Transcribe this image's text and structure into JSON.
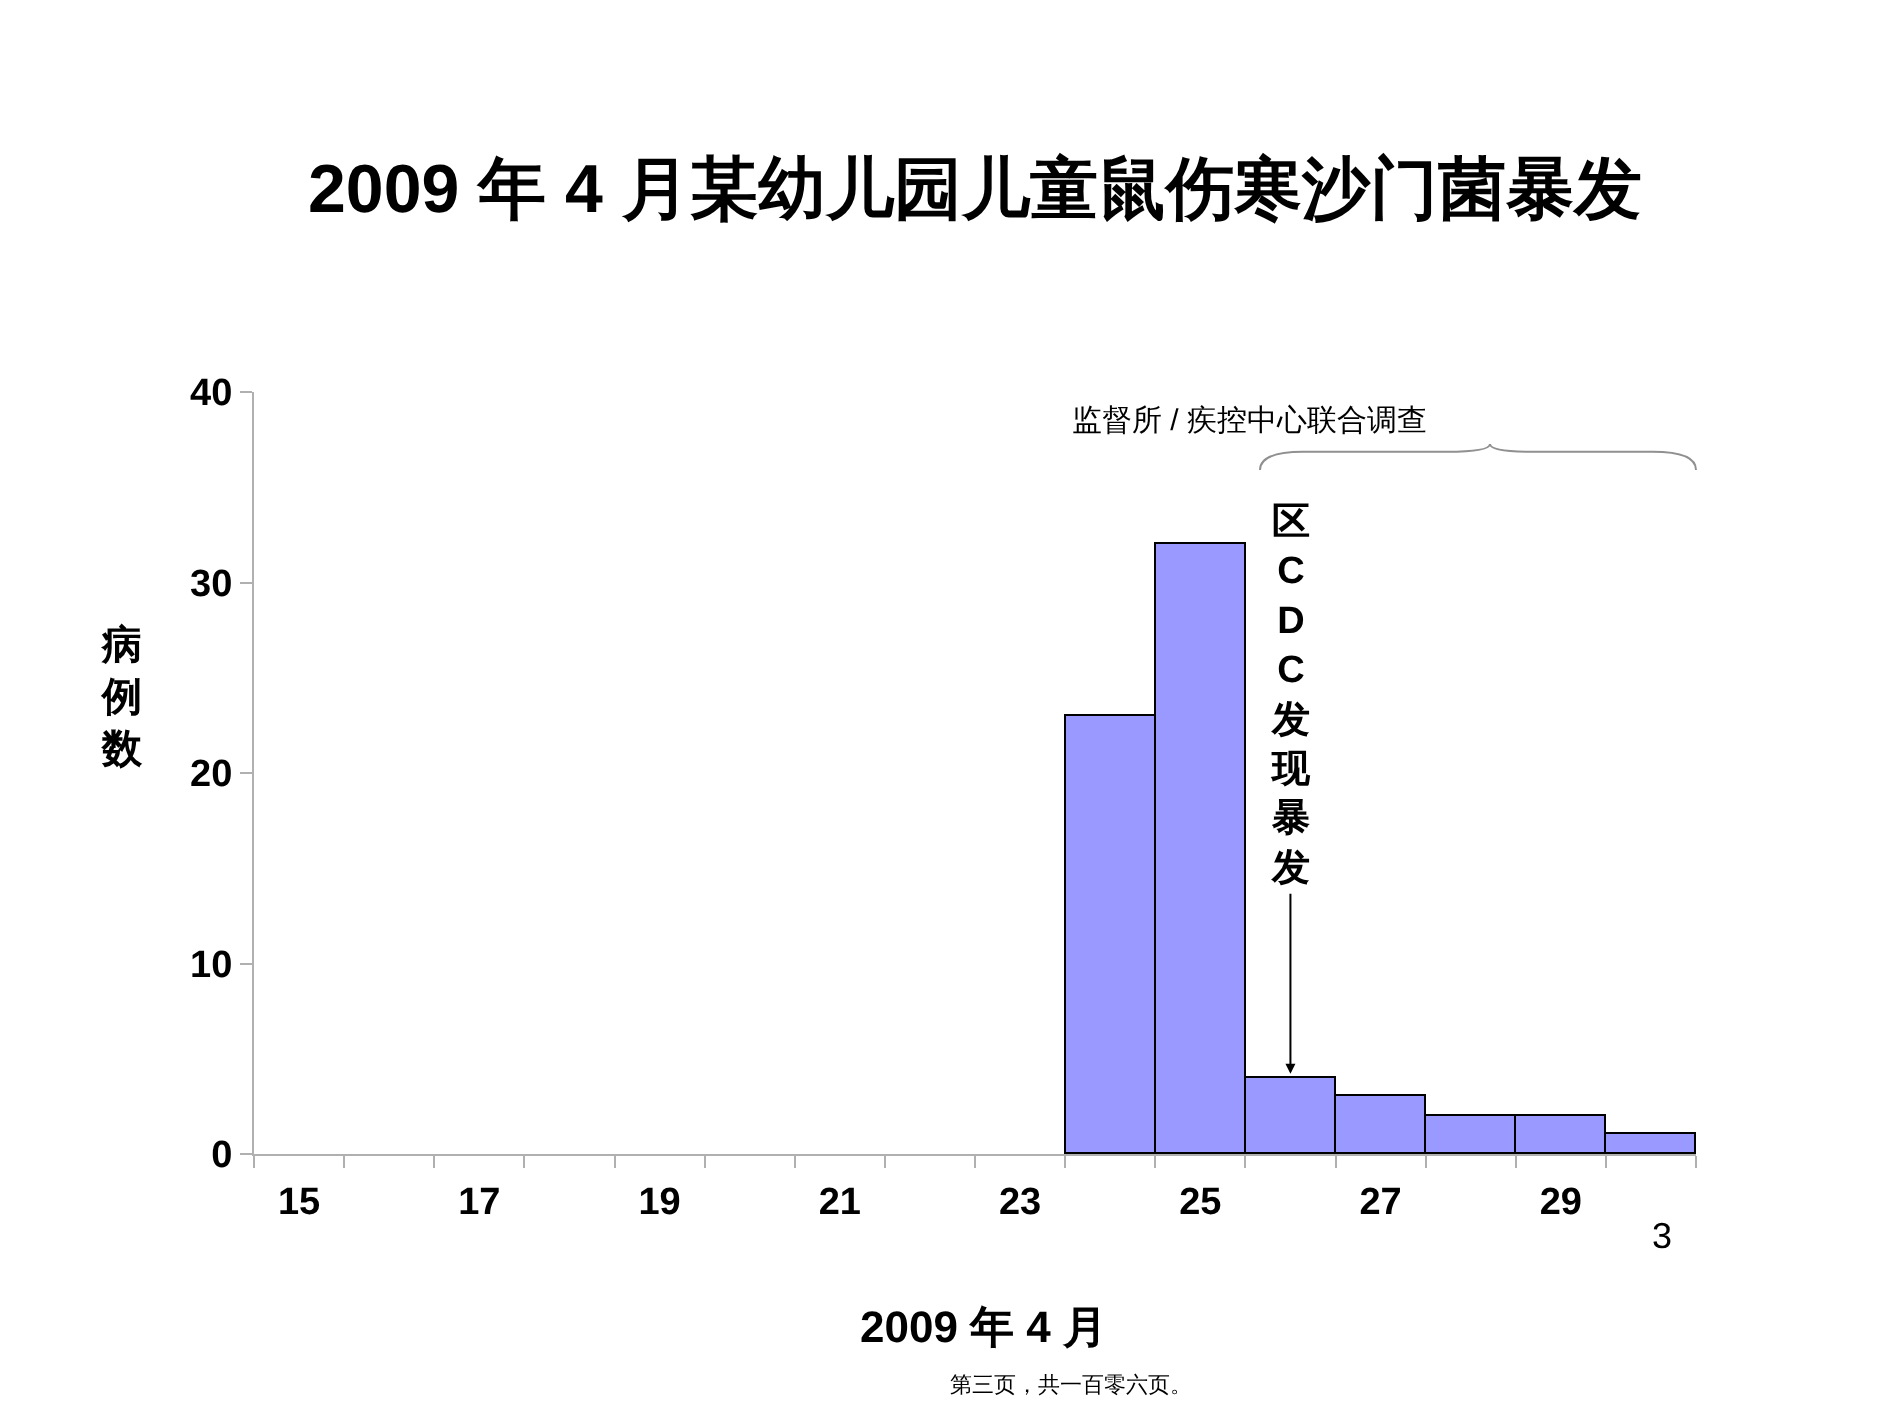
{
  "chart_data": {
    "type": "histogram",
    "title": "2009 年 4 月某幼儿园儿童鼠伤寒沙门菌暴发",
    "xlabel": "2009 年 4 月",
    "ylabel": "病例数",
    "bins": [
      14.5,
      15.5,
      16.5,
      17.5,
      18.5,
      19.5,
      20.5,
      21.5,
      22.5,
      23.5,
      24.5,
      25.5,
      26.5,
      27.5,
      28.5,
      29.5,
      30.5
    ],
    "values": [
      0,
      0,
      0,
      0,
      0,
      0,
      0,
      0,
      0,
      23,
      32,
      4,
      3,
      2,
      2,
      1
    ],
    "color": "#9999ff",
    "xlim": [
      14.5,
      30.5
    ],
    "xticks": [
      15,
      17,
      19,
      21,
      23,
      25,
      27,
      29,
      {
        "value": 14.5,
        "label": null
      },
      {
        "value": 15.5,
        "label": null
      },
      {
        "value": 16.5,
        "label": null
      },
      {
        "value": 17.5,
        "label": null
      },
      {
        "value": 18.5,
        "label": null
      },
      {
        "value": 19.5,
        "label": null
      },
      {
        "value": 20.5,
        "label": null
      },
      {
        "value": 21.5,
        "label": null
      },
      {
        "value": 22.5,
        "label": null
      },
      {
        "value": 23.5,
        "label": null
      },
      {
        "value": 24.5,
        "label": null
      },
      {
        "value": 25.5,
        "label": null
      },
      {
        "value": 26.5,
        "label": null
      },
      {
        "value": 27.5,
        "label": null
      },
      {
        "value": 28.5,
        "label": null
      },
      {
        "value": 29.5,
        "label": null
      },
      {
        "value": 30.5,
        "label": null
      }
    ],
    "ylim": [
      0,
      40
    ],
    "yticks": [
      0,
      10,
      20,
      30,
      40
    ],
    "grid": false,
    "annotations": [
      {
        "text": "区CDC发现暴发",
        "x": 26,
        "y": 4
      },
      "监督所 / 疾控中心联合调查",
      "3",
      "第三页，共一百零六页。"
    ]
  }
}
